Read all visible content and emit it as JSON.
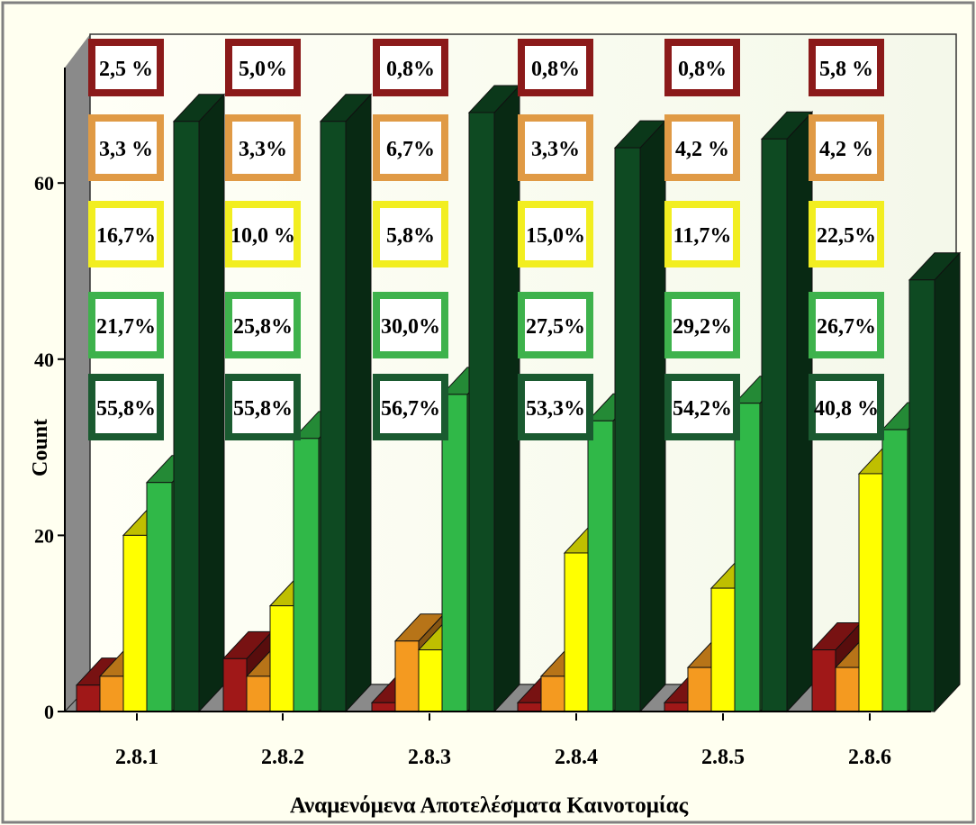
{
  "chart_data": {
    "type": "bar",
    "title": "",
    "xlabel": "Αναμενόμενα Αποτελέσματα Καινοτομίας",
    "ylabel": "Count",
    "ylim": [
      0,
      72
    ],
    "yticks": [
      "0",
      "20",
      "40",
      "60"
    ],
    "categories": [
      "2.8.1",
      "2.8.2",
      "2.8.3",
      "2.8.4",
      "2.8.5",
      "2.8.6"
    ],
    "series": [
      {
        "color": "#a01818",
        "values": [
          3,
          6,
          1,
          1,
          1,
          7
        ]
      },
      {
        "color": "#f49a20",
        "values": [
          4,
          4,
          8,
          4,
          5,
          5
        ]
      },
      {
        "color": "#ffff00",
        "values": [
          20,
          12,
          7,
          18,
          14,
          27
        ]
      },
      {
        "color": "#30b848",
        "values": [
          26,
          31,
          36,
          33,
          35,
          32
        ]
      },
      {
        "color": "#0e4a22",
        "values": [
          67,
          67,
          68,
          64,
          65,
          49
        ]
      }
    ],
    "percent_labels": [
      [
        "2,5 %",
        "3,3 %",
        "16,7%",
        "21,7%",
        "55,8%"
      ],
      [
        "5,0%",
        "3,3%",
        "10,0 %",
        "25,8%",
        "55,8%"
      ],
      [
        "0,8%",
        "6,7%",
        "5,8%",
        "30,0%",
        "56,7%"
      ],
      [
        "0,8%",
        "3,3%",
        "15,0%",
        "27,5%",
        "53,3%"
      ],
      [
        "0,8%",
        "4,2 %",
        "11,7%",
        "29,2%",
        "54,2%"
      ],
      [
        "5,8 %",
        "4,2 %",
        "22,5%",
        "26,7%",
        "40,8 %"
      ]
    ],
    "label_border_colors": [
      "#8b1a1a",
      "#e09a45",
      "#f2ee20",
      "#3eb24c",
      "#1a5a30"
    ]
  }
}
